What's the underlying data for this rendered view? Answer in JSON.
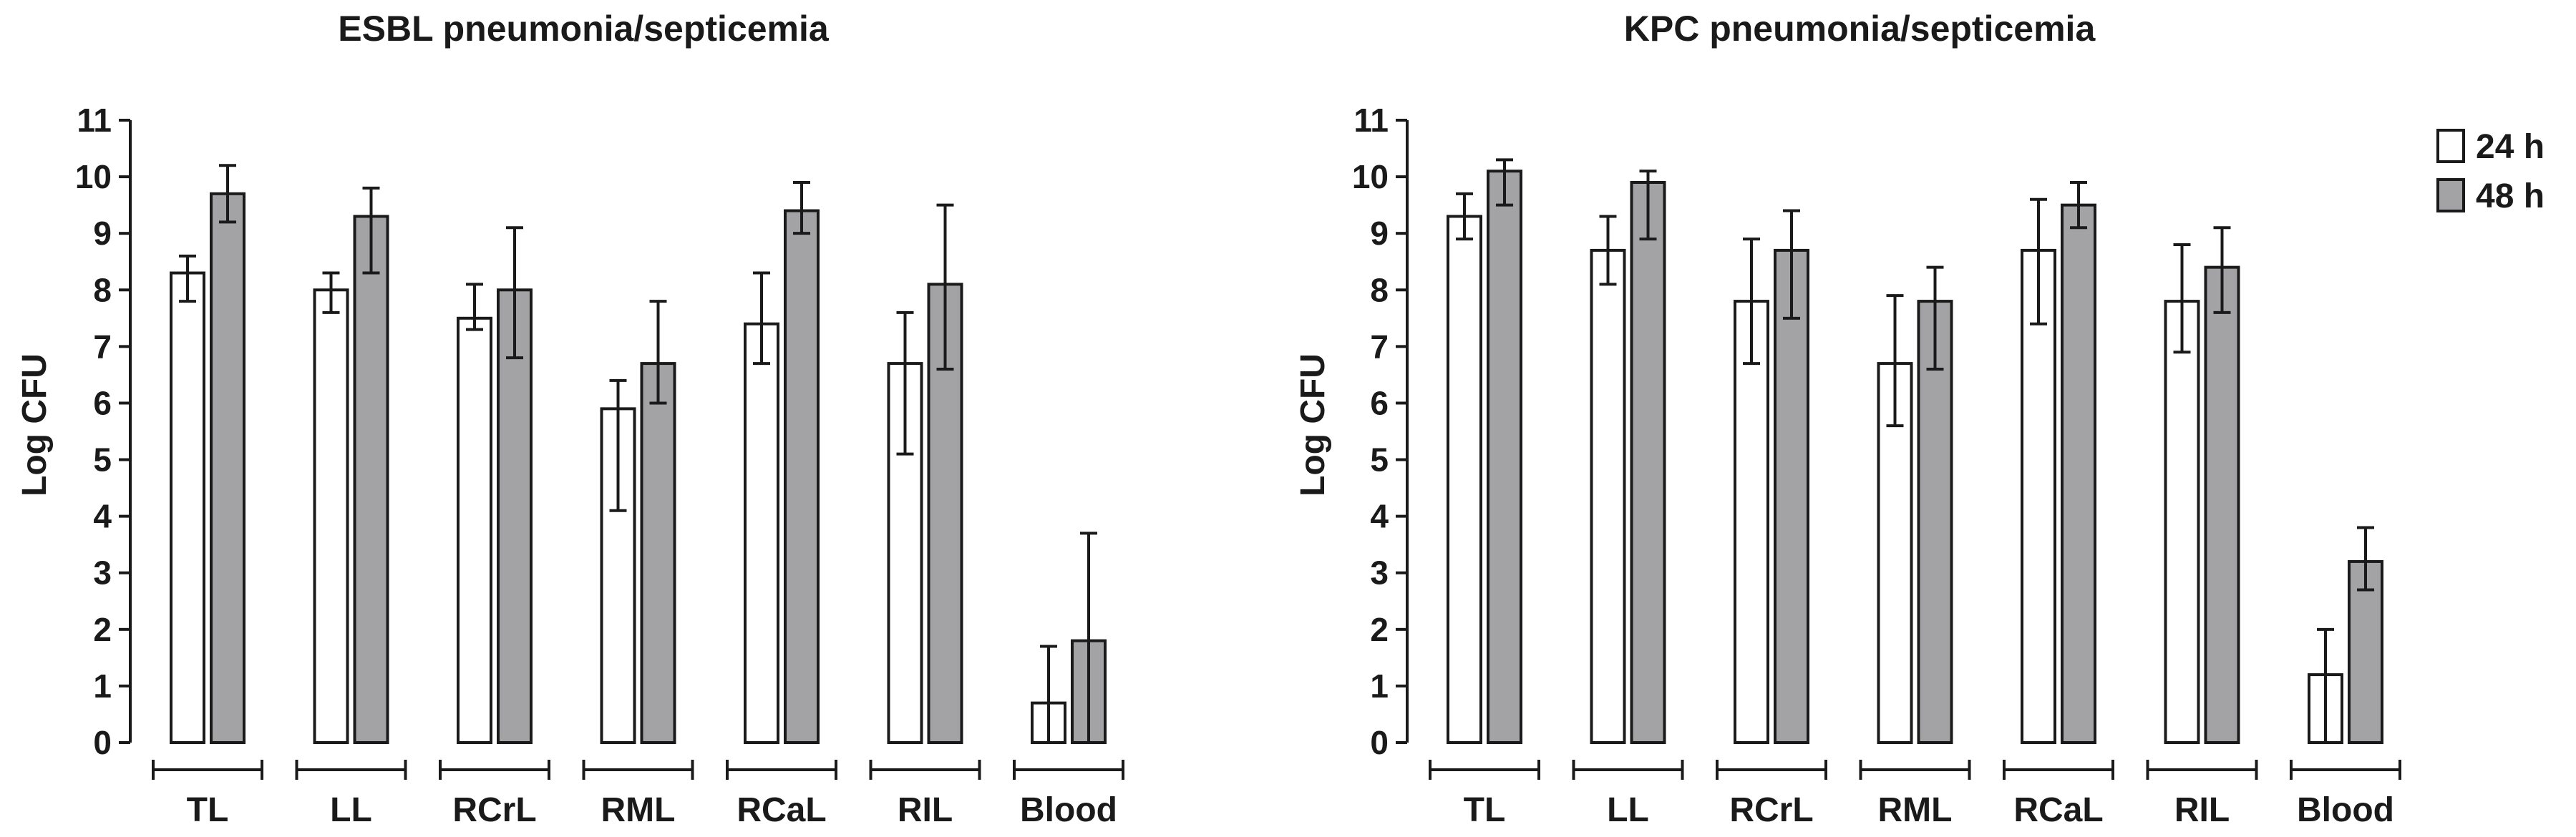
{
  "colors": {
    "bar_24h": "#ffffff",
    "bar_48h": "#a3a3a6",
    "stroke": "#1a1a1a"
  },
  "legend": {
    "entries": [
      "24 h",
      "48 h"
    ]
  },
  "chart_data": [
    {
      "type": "bar",
      "title": "ESBL pneumonia/septicemia",
      "xlabel": "",
      "ylabel": "Log CFU",
      "ylim": [
        0,
        11
      ],
      "yticks": [
        0,
        1,
        2,
        3,
        4,
        5,
        6,
        7,
        8,
        9,
        10,
        11
      ],
      "categories": [
        "TL",
        "LL",
        "RCrL",
        "RML",
        "RCaL",
        "RIL",
        "Blood"
      ],
      "series": [
        {
          "name": "24 h",
          "values": [
            8.3,
            8.0,
            7.5,
            5.9,
            7.4,
            6.7,
            0.7
          ],
          "err_low": [
            7.8,
            7.6,
            7.3,
            4.1,
            6.7,
            5.1,
            0.0
          ],
          "err_high": [
            8.6,
            8.3,
            8.1,
            6.4,
            8.3,
            7.6,
            1.7
          ]
        },
        {
          "name": "48 h",
          "values": [
            9.7,
            9.3,
            8.0,
            6.7,
            9.4,
            8.1,
            1.8
          ],
          "err_low": [
            9.2,
            8.3,
            6.8,
            6.0,
            9.0,
            6.6,
            0.0
          ],
          "err_high": [
            10.2,
            9.8,
            9.1,
            7.8,
            9.9,
            9.5,
            3.7
          ]
        }
      ],
      "legend": "none"
    },
    {
      "type": "bar",
      "title": "KPC pneumonia/septicemia",
      "xlabel": "",
      "ylabel": "Log CFU",
      "ylim": [
        0,
        11
      ],
      "yticks": [
        0,
        1,
        2,
        3,
        4,
        5,
        6,
        7,
        8,
        9,
        10,
        11
      ],
      "categories": [
        "TL",
        "LL",
        "RCrL",
        "RML",
        "RCaL",
        "RIL",
        "Blood"
      ],
      "series": [
        {
          "name": "24 h",
          "values": [
            9.3,
            8.7,
            7.8,
            6.7,
            8.7,
            7.8,
            1.2
          ],
          "err_low": [
            8.9,
            8.1,
            6.7,
            5.6,
            7.4,
            6.9,
            0.0
          ],
          "err_high": [
            9.7,
            9.3,
            8.9,
            7.9,
            9.6,
            8.8,
            2.0
          ]
        },
        {
          "name": "48 h",
          "values": [
            10.1,
            9.9,
            8.7,
            7.8,
            9.5,
            8.4,
            3.2
          ],
          "err_low": [
            9.5,
            8.9,
            7.5,
            6.6,
            9.1,
            7.6,
            2.7
          ],
          "err_high": [
            10.3,
            10.1,
            9.4,
            8.4,
            9.9,
            9.1,
            3.8
          ]
        }
      ],
      "legend": "right"
    }
  ]
}
